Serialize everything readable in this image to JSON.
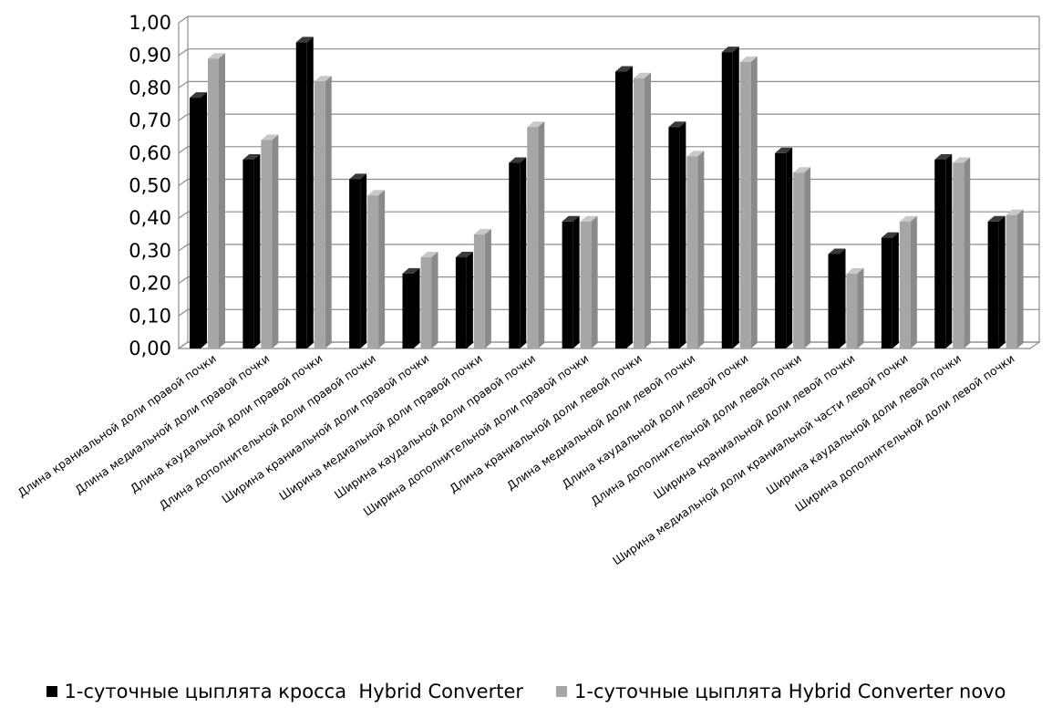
{
  "chart_data": {
    "type": "bar",
    "title": "",
    "xlabel": "",
    "ylabel": "",
    "ylim": [
      0,
      1
    ],
    "yticks": [
      "0,00",
      "0,10",
      "0,20",
      "0,30",
      "0,40",
      "0,50",
      "0,60",
      "0,70",
      "0,80",
      "0,90",
      "1,00"
    ],
    "grid": true,
    "legend_position": "bottom",
    "categories": [
      "Длина краниальной доли правой почки",
      "Длина медиальной доли правой почки",
      "Длина каудальной доли правой почки",
      "Длина дополнительной доли правой почки",
      "Ширина краниальной доли правой почки",
      "Ширина медиальной доли правой почки",
      "Ширина каудальной доли правой почки",
      "Ширина дополнительной доли правой почки",
      "Длина краниальной доли левой почки",
      "Длина медиальной доли левой почки",
      "Длина каудальной доли левой почки",
      "Длина дополнительной доли левой почки",
      "Ширина краниальной доли левой почки",
      "Ширина медиальной доли краниальной части левой почки",
      "Ширина каудальной доли левой почки",
      "Ширина дополнительной доли  левой почки"
    ],
    "series": [
      {
        "name": "1-суточные цыплята кросса  Hybrid Converter",
        "color": "#000000",
        "values": [
          0.77,
          0.58,
          0.94,
          0.52,
          0.23,
          0.28,
          0.57,
          0.39,
          0.85,
          0.68,
          0.91,
          0.6,
          0.29,
          0.34,
          0.58,
          0.39
        ]
      },
      {
        "name": "1-суточные цыплята Hybrid Converter novo",
        "color": "#a6a6a6",
        "values": [
          0.89,
          0.64,
          0.82,
          0.47,
          0.28,
          0.35,
          0.68,
          0.39,
          0.83,
          0.59,
          0.88,
          0.54,
          0.23,
          0.39,
          0.57,
          0.41
        ]
      }
    ]
  }
}
